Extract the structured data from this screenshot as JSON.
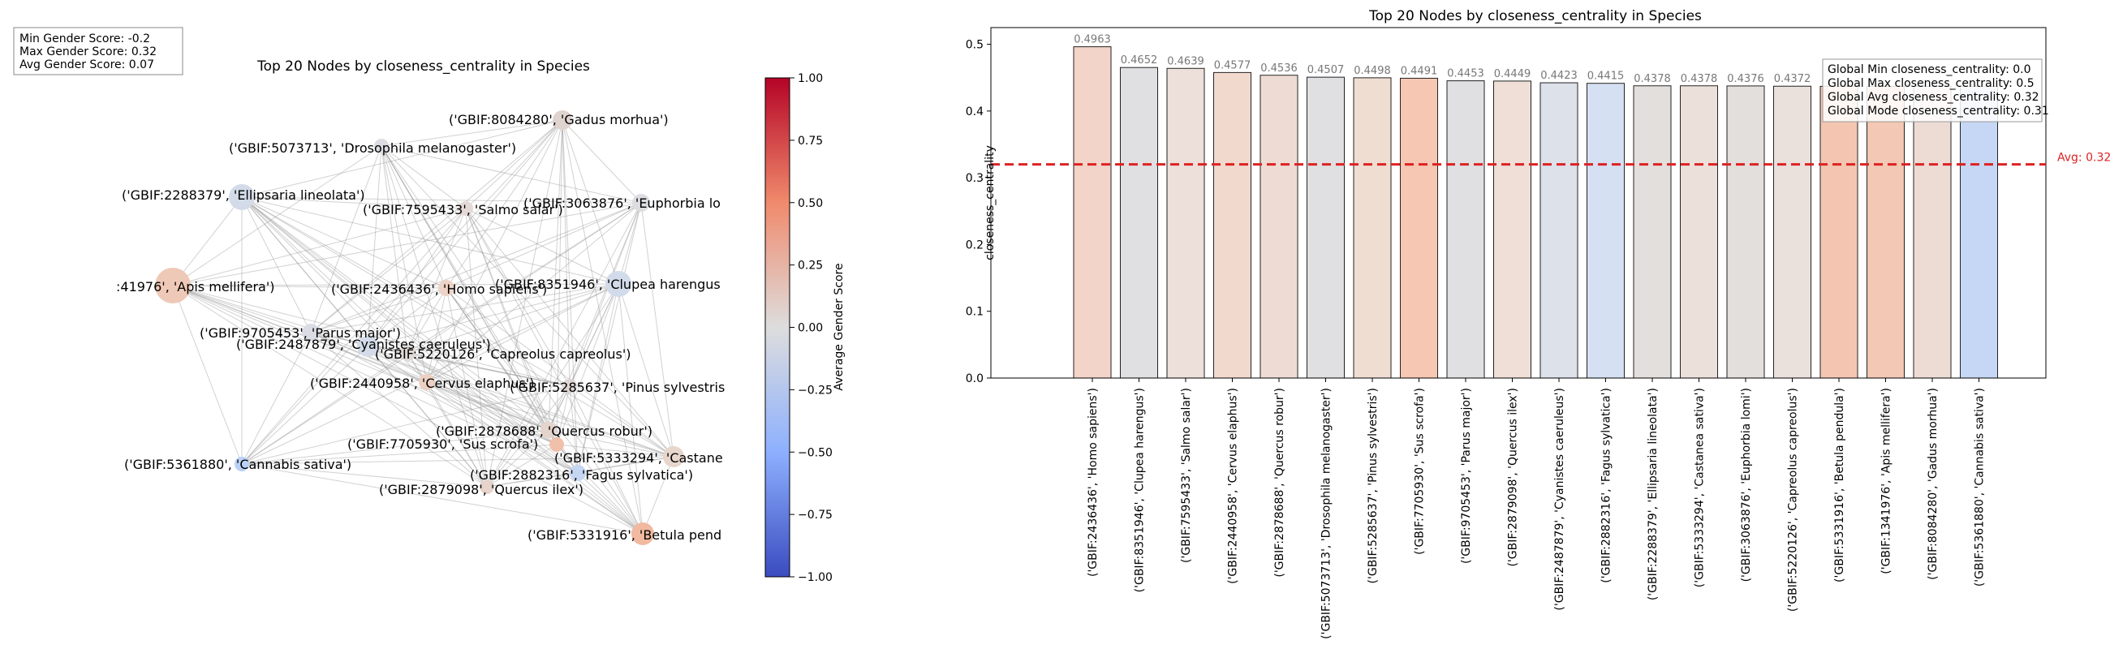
{
  "network": {
    "title": "Top 20 Nodes by closeness_centrality in Species",
    "stats_box": [
      "Min Gender Score: -0.2",
      "Max Gender Score: 0.32",
      "Avg Gender Score: 0.07"
    ],
    "colorbar": {
      "label": "Average Gender Score",
      "ticks": [
        "1.00",
        "0.75",
        "0.50",
        "0.25",
        "0.00",
        "−0.25",
        "−0.50",
        "−0.75",
        "−1.00"
      ]
    },
    "nodes": [
      {
        "label": "('GBIF:8084280', 'Gadus morhua')",
        "color": "#dfd4cf"
      },
      {
        "label": "('GBIF:5073713', 'Drosophila melanogaster')",
        "color": "#dbdde2"
      },
      {
        "label": "('GBIF:2288379', 'Ellipsaria lineolata')",
        "color": "#d3dbe8"
      },
      {
        "label": "('GBIF:3063876', 'Euphorbia lo",
        "color": "#dcdde1"
      },
      {
        "label": "('GBIF:7595433', 'Salmo salar')",
        "color": "#e4d9d6"
      },
      {
        "label": ":41976', 'Apis mellifera')",
        "color": "#efc9b7"
      },
      {
        "label": "('GBIF:2436436', 'Homo sapiens')",
        "color": "#edd3c6"
      },
      {
        "label": "('GBIF:8351946', 'Clupea harengus",
        "color": "#d1dbea"
      },
      {
        "label": "('GBIF:9705453', 'Parus major')",
        "color": "#d9dce3"
      },
      {
        "label": "('GBIF:2487879', 'Cyanistes caeruleus')",
        "color": "#d3dbe8"
      },
      {
        "label": "('GBIF:5220126', 'Capreolus capreolus')",
        "color": "#e0d9d6"
      },
      {
        "label": "('GBIF:2440958', 'Cervus elaphus')",
        "color": "#ecd0c2"
      },
      {
        "label": "('GBIF:5285637', 'Pinus sylvestris",
        "color": "#ddd6d3"
      },
      {
        "label": "('GBIF:2878688', 'Quercus robur')",
        "color": "#e4d4cc"
      },
      {
        "label": "('GBIF:7705930', 'Sus scrofa')",
        "color": "#f0c0aa"
      },
      {
        "label": "('GBIF:5333294', 'Castane",
        "color": "#e7d6cc"
      },
      {
        "label": "('GBIF:2882316', 'Fagus sylvatica')",
        "color": "#c5d6f2"
      },
      {
        "label": "('GBIF:5361880', 'Cannabis sativa')",
        "color": "#b9d0f7"
      },
      {
        "label": "('GBIF:2879098', 'Quercus ilex')",
        "color": "#e6d3cc"
      },
      {
        "label": "('GBIF:5331916', 'Betula pend",
        "color": "#f1b9a0"
      }
    ]
  },
  "chart_data": {
    "type": "bar",
    "title": "Top 20 Nodes by closeness_centrality in Species",
    "ylabel": "closeness_centrality",
    "xlabel": "",
    "ylim": [
      0,
      0.525
    ],
    "yticks": [
      "0.0",
      "0.1",
      "0.2",
      "0.3",
      "0.4",
      "0.5"
    ],
    "categories": [
      "('GBIF:2436436', 'Homo sapiens')",
      "('GBIF:8351946', 'Clupea harengus')",
      "('GBIF:7595433', 'Salmo salar')",
      "('GBIF:2440958', 'Cervus elaphus')",
      "('GBIF:2878688', 'Quercus robur')",
      "('GBIF:5073713', 'Drosophila melanogaster')",
      "('GBIF:5285637', 'Pinus sylvestris')",
      "('GBIF:7705930', 'Sus scrofa')",
      "('GBIF:9705453', 'Parus major')",
      "('GBIF:2879098', 'Quercus ilex')",
      "('GBIF:2487879', 'Cyanistes caeruleus')",
      "('GBIF:2882316', 'Fagus sylvatica')",
      "('GBIF:2288379', 'Ellipsaria lineolata')",
      "('GBIF:5333294', 'Castanea sativa')",
      "('GBIF:3063876', 'Euphorbia lomi')",
      "('GBIF:5220126', 'Capreolus capreolus')",
      "('GBIF:5331916', 'Betula pendula')",
      "('GBIF:1341976', 'Apis mellifera')",
      "('GBIF:8084280', 'Gadus morhua')",
      "('GBIF:5361880', 'Cannabis sativa')"
    ],
    "values": [
      0.4963,
      0.4652,
      0.4639,
      0.4577,
      0.4536,
      0.4507,
      0.4498,
      0.4491,
      0.4453,
      0.4449,
      0.4423,
      0.4415,
      0.4378,
      0.4378,
      0.4376,
      0.4372,
      0.437,
      0.437,
      0.437,
      0.437
    ],
    "value_labels": [
      "0.4963",
      "0.4652",
      "0.4639",
      "0.4577",
      "0.4536",
      "0.4507",
      "0.4498",
      "0.4491",
      "0.4453",
      "0.4449",
      "0.4423",
      "0.4415",
      "0.4378",
      "0.4378",
      "0.4376",
      "0.4372",
      "",
      "",
      "",
      ""
    ],
    "bar_colors": [
      "#f2d4c9",
      "#e0e0e2",
      "#ede0da",
      "#f2d9cd",
      "#eedcd4",
      "#e0e0e2",
      "#f0ddd2",
      "#f6c7b2",
      "#e0e0e2",
      "#efdfd6",
      "#dce1ea",
      "#d5e0f2",
      "#e3dfdc",
      "#ece0da",
      "#e3dfdc",
      "#ebe1dc",
      "#f4c6b1",
      "#f3c8b4",
      "#eddcd4",
      "#c5d7f4"
    ],
    "avg_line": {
      "value": 0.32,
      "label": "Avg: 0.32",
      "color": "#dd2222"
    },
    "legend_box": [
      "Global Min closeness_centrality: 0.0",
      "Global Max closeness_centrality: 0.5",
      "Global Avg closeness_centrality: 0.32",
      "Global Mode closeness_centrality: 0.31"
    ],
    "grid": false
  }
}
